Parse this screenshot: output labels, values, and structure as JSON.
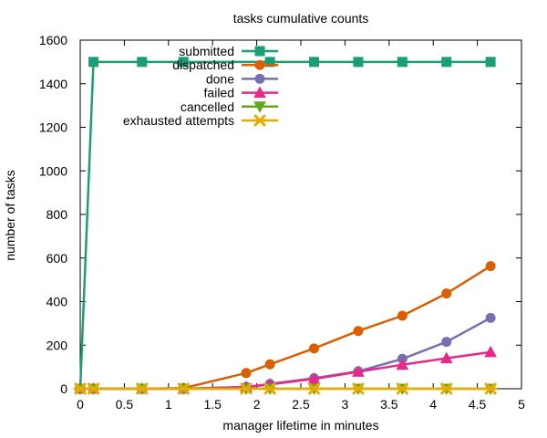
{
  "chart_data": {
    "type": "line",
    "title": "tasks cumulative counts",
    "xlabel": "manager lifetime in minutes",
    "ylabel": "number of tasks",
    "xlim": [
      0,
      5
    ],
    "ylim": [
      0,
      1600
    ],
    "xticks": [
      "0",
      "0.5",
      "1",
      "1.5",
      "2",
      "2.5",
      "3",
      "3.5",
      "4",
      "4.5",
      "5"
    ],
    "yticks": [
      "0",
      "200",
      "400",
      "600",
      "800",
      "1000",
      "1200",
      "1400",
      "1600"
    ],
    "grid": false,
    "legend_position": "top-left",
    "series": [
      {
        "name": "submitted",
        "color": "#1b9e77",
        "marker": "square",
        "x": [
          0,
          0.15,
          0.7,
          1.17,
          2.15,
          2.65,
          3.15,
          3.65,
          4.15,
          4.65
        ],
        "y": [
          0,
          1500,
          1500,
          1500,
          1500,
          1500,
          1500,
          1500,
          1500,
          1500
        ]
      },
      {
        "name": "dispatched",
        "color": "#d95f02",
        "marker": "circle",
        "x": [
          0,
          0.15,
          0.7,
          1.17,
          1.88,
          2.15,
          2.65,
          3.15,
          3.65,
          4.15,
          4.65
        ],
        "y": [
          0,
          0,
          0,
          3,
          72,
          112,
          185,
          265,
          335,
          437,
          563
        ]
      },
      {
        "name": "done",
        "color": "#7570b3",
        "marker": "circle",
        "x": [
          0,
          0.15,
          0.7,
          1.17,
          1.88,
          2.15,
          2.65,
          3.15,
          3.65,
          4.15,
          4.65
        ],
        "y": [
          0,
          0,
          0,
          0,
          8,
          22,
          48,
          80,
          137,
          215,
          325
        ]
      },
      {
        "name": "failed",
        "color": "#e7298a",
        "marker": "triangle-up",
        "x": [
          0,
          0.15,
          0.7,
          1.17,
          1.88,
          2.15,
          2.65,
          3.15,
          3.65,
          4.15,
          4.65
        ],
        "y": [
          0,
          0,
          0,
          0,
          8,
          20,
          45,
          78,
          110,
          140,
          168
        ]
      },
      {
        "name": "cancelled",
        "color": "#66a61e",
        "marker": "triangle-down",
        "x": [
          0,
          0.15,
          0.7,
          1.17,
          1.88,
          2.15,
          2.65,
          3.15,
          3.65,
          4.15,
          4.65
        ],
        "y": [
          0,
          0,
          0,
          0,
          0,
          0,
          0,
          0,
          0,
          0,
          0
        ]
      },
      {
        "name": "exhausted attempts",
        "color": "#e6ab02",
        "marker": "star",
        "x": [
          0,
          0.15,
          0.7,
          1.17,
          1.88,
          2.15,
          2.65,
          3.15,
          3.65,
          4.15,
          4.65
        ],
        "y": [
          0,
          0,
          0,
          0,
          0,
          0,
          0,
          0,
          0,
          0,
          0
        ]
      }
    ]
  }
}
